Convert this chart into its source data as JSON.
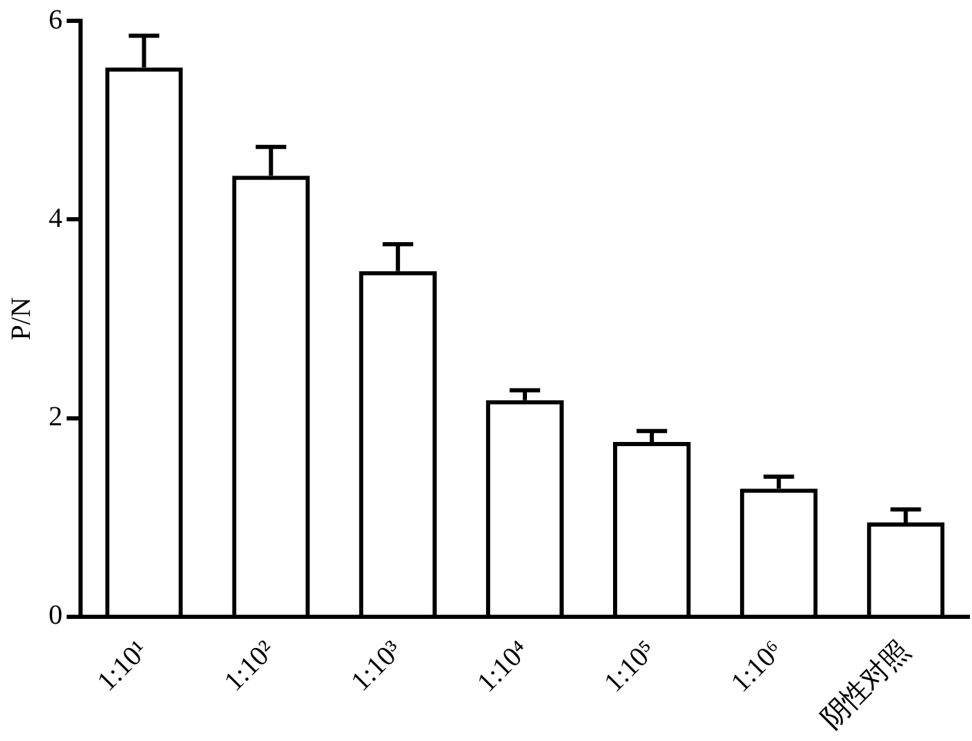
{
  "chart_data": {
    "type": "bar",
    "ylabel": "P/N",
    "categories": [
      "1:10¹",
      "1:10²",
      "1:10³",
      "1:10⁴",
      "1:10⁵",
      "1:10⁶",
      "阴性对照"
    ],
    "values": [
      5.53,
      4.44,
      3.48,
      2.18,
      1.76,
      1.29,
      0.95
    ],
    "errors": [
      [
        5.53,
        5.85
      ],
      [
        4.44,
        4.73
      ],
      [
        3.48,
        3.75
      ],
      [
        2.18,
        2.28
      ],
      [
        1.76,
        1.87
      ],
      [
        1.29,
        1.41
      ],
      [
        0.95,
        1.08
      ]
    ],
    "color": "#000000",
    "ylim": [
      0,
      6
    ],
    "yticks": [
      0,
      2,
      4,
      6
    ],
    "grid": false,
    "legend": false
  }
}
